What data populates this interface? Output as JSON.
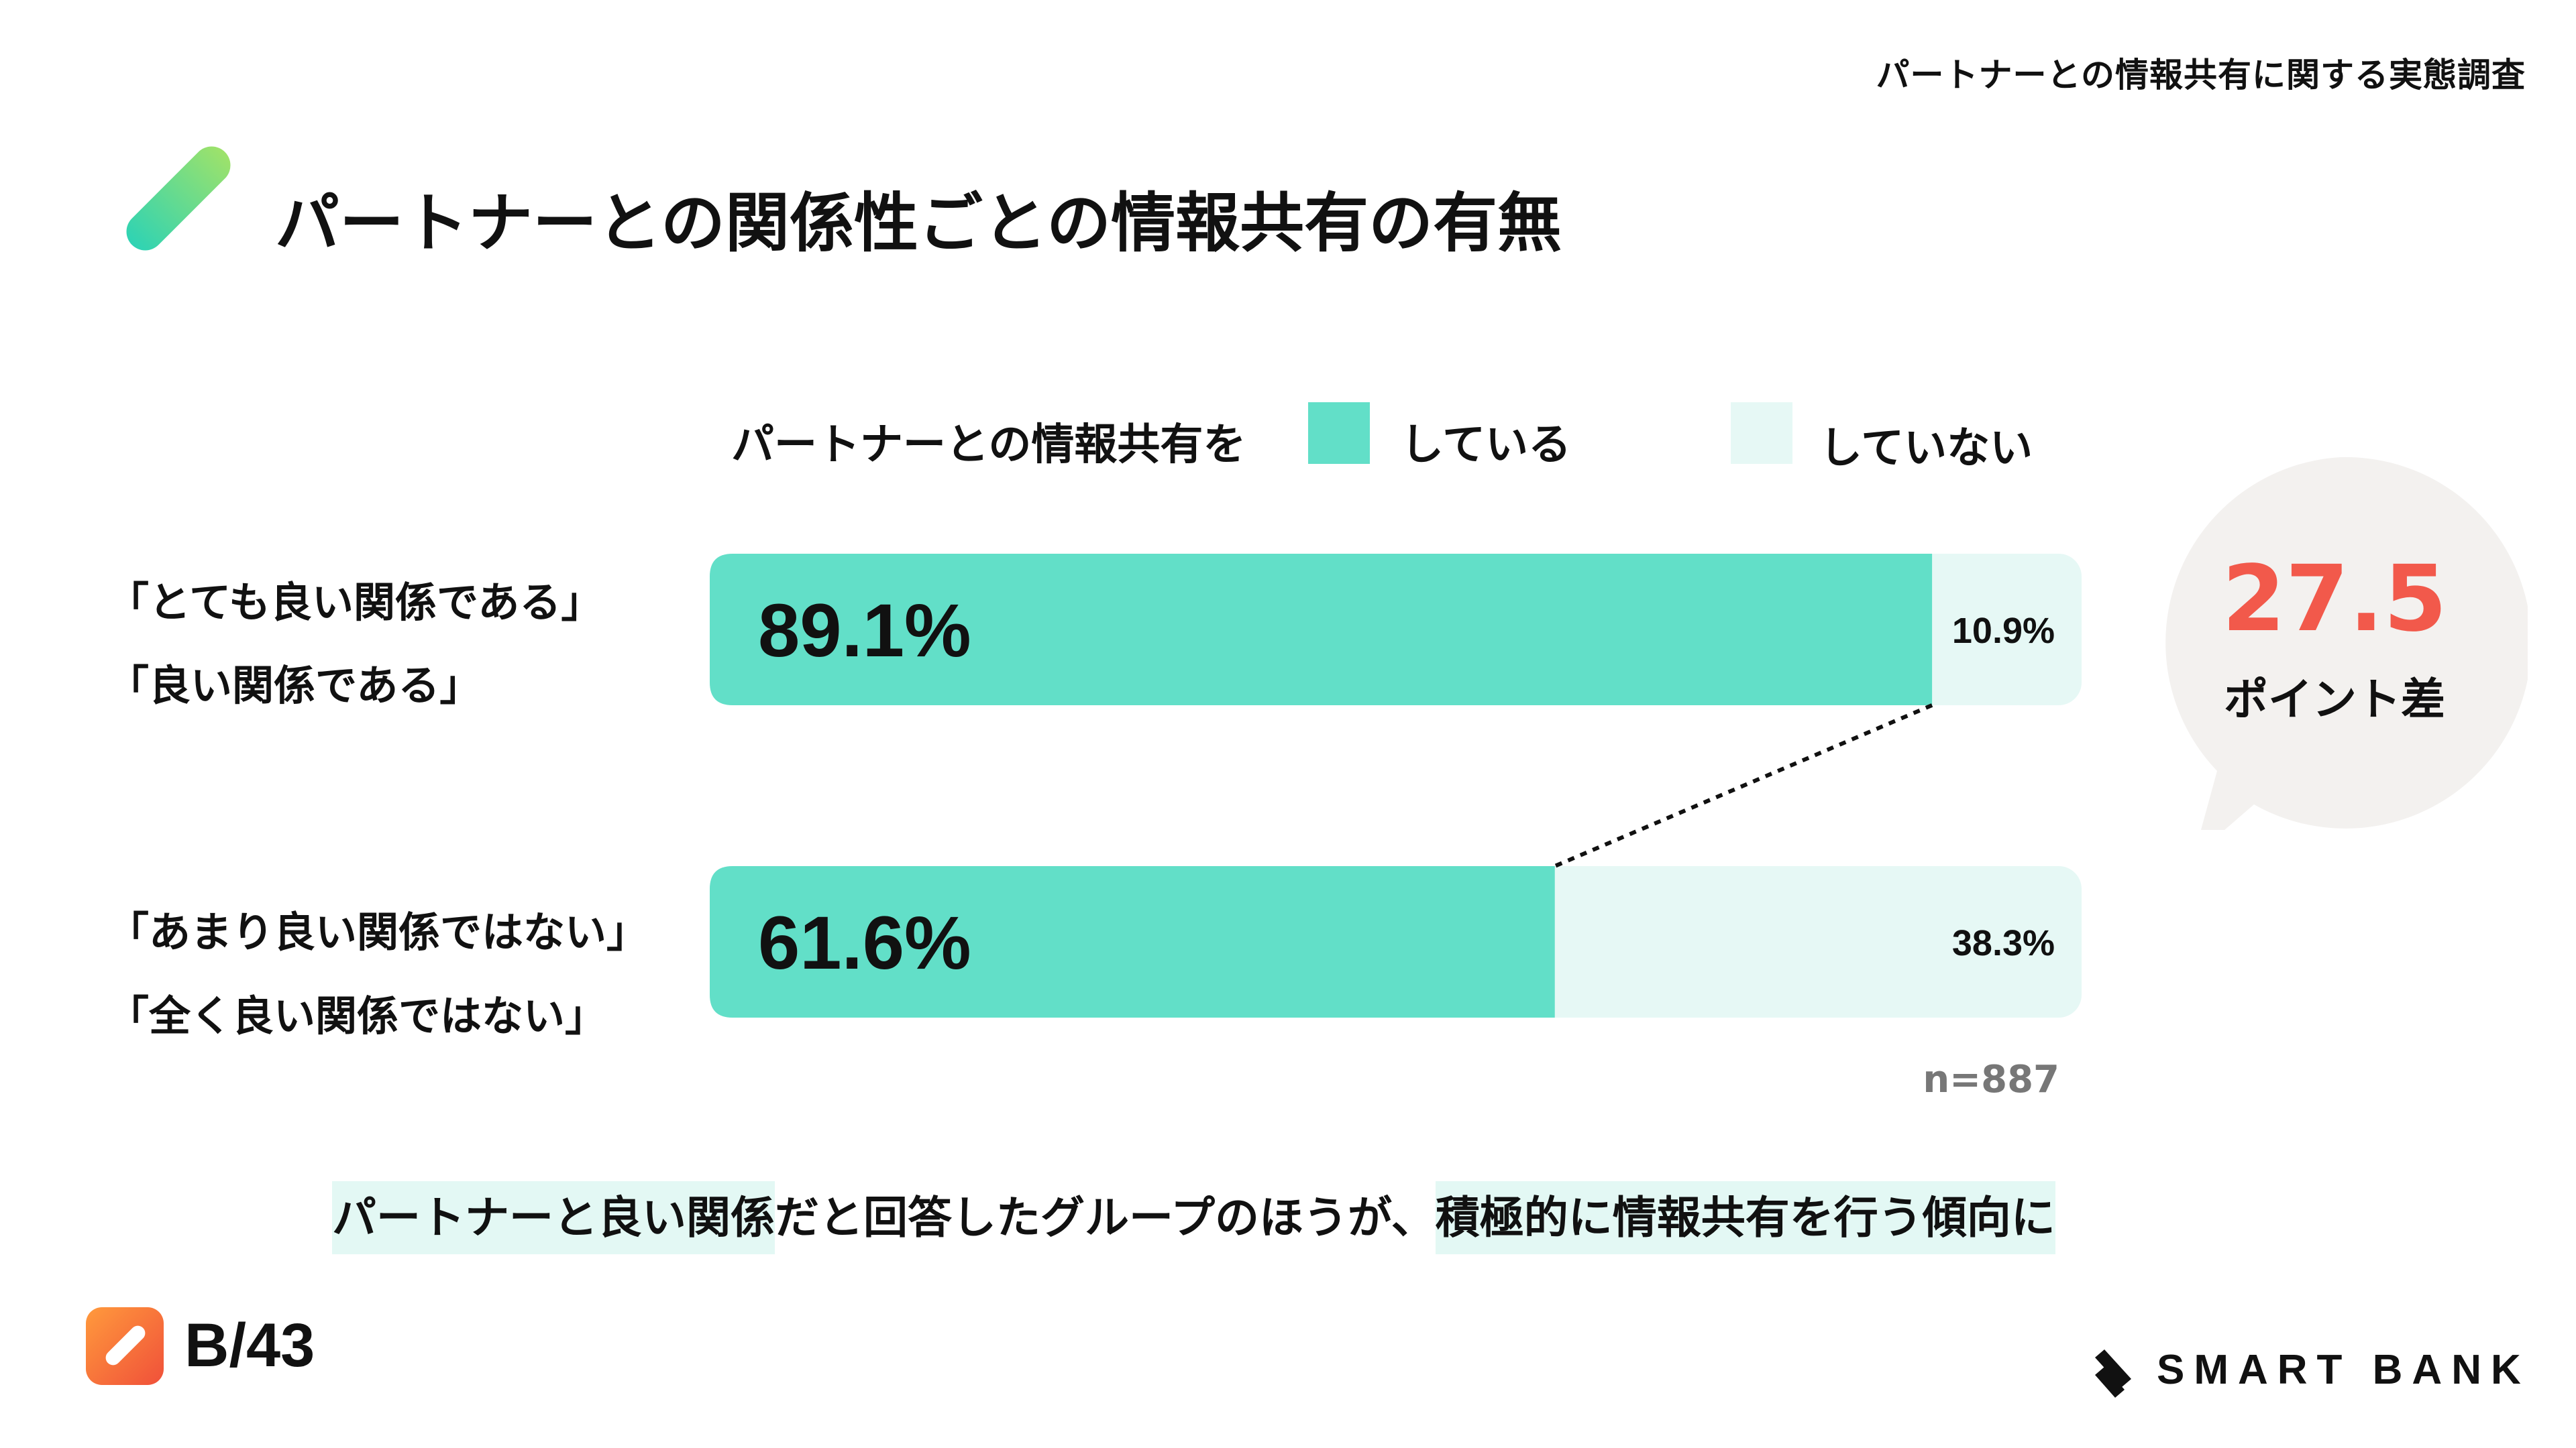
{
  "header": {
    "survey_title": "パートナーとの情報共有に関する実態調査"
  },
  "title": "パートナーとの関係性ごとの情報共有の有無",
  "legend": {
    "caption": "パートナーとの情報共有を",
    "items": [
      {
        "label": "している",
        "color": "#62dfc8"
      },
      {
        "label": "していない",
        "color": "#e6f8f5"
      }
    ]
  },
  "chart_data": {
    "type": "bar",
    "orientation": "horizontal",
    "stacked": true,
    "categories": [
      [
        "「とても良い関係である」",
        "「良い関係である」"
      ],
      [
        "「あまり良い関係ではない」",
        "「全く良い関係ではない」"
      ]
    ],
    "series": [
      {
        "name": "している",
        "values": [
          89.1,
          61.6
        ],
        "labels": [
          "89.1%",
          "61.6%"
        ],
        "color": "#62dfc8"
      },
      {
        "name": "していない",
        "values": [
          10.9,
          38.3
        ],
        "labels": [
          "10.9%",
          "38.3%"
        ],
        "color": "#e6f8f5"
      }
    ],
    "xlim": [
      0,
      100
    ],
    "grid": false,
    "legend_position": "top"
  },
  "difference": {
    "value": "27.5",
    "label": "ポイント差",
    "bubble_color": "#f3f1ef",
    "value_color": "#f2594b"
  },
  "sample_size": "n=887",
  "conclusion": {
    "part1": "パートナーと良い関係",
    "part2": "だと回答したグループのほうが、",
    "part3": "積極的に情報共有を行う傾向に"
  },
  "footer": {
    "page_number": "B/43",
    "brand": "SMART BANK",
    "logo_icon": "pen-stroke-icon",
    "brand_icon": "smartbank-slash-icon"
  }
}
